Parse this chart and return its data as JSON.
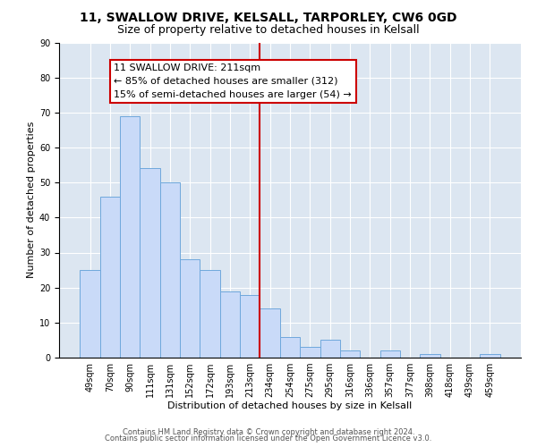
{
  "title": "11, SWALLOW DRIVE, KELSALL, TARPORLEY, CW6 0GD",
  "subtitle": "Size of property relative to detached houses in Kelsall",
  "xlabel": "Distribution of detached houses by size in Kelsall",
  "ylabel": "Number of detached properties",
  "bar_labels": [
    "49sqm",
    "70sqm",
    "90sqm",
    "111sqm",
    "131sqm",
    "152sqm",
    "172sqm",
    "193sqm",
    "213sqm",
    "234sqm",
    "254sqm",
    "275sqm",
    "295sqm",
    "316sqm",
    "336sqm",
    "357sqm",
    "377sqm",
    "398sqm",
    "418sqm",
    "439sqm",
    "459sqm"
  ],
  "bar_heights": [
    25,
    46,
    69,
    54,
    50,
    28,
    25,
    19,
    18,
    14,
    6,
    3,
    5,
    2,
    0,
    2,
    0,
    1,
    0,
    0,
    1
  ],
  "bar_color": "#c9daf8",
  "bar_edge_color": "#6fa8dc",
  "vline_color": "#cc0000",
  "annotation_text": "11 SWALLOW DRIVE: 211sqm\n← 85% of detached houses are smaller (312)\n15% of semi-detached houses are larger (54) →",
  "annotation_box_color": "#ffffff",
  "annotation_box_edge": "#cc0000",
  "ylim": [
    0,
    90
  ],
  "yticks": [
    0,
    10,
    20,
    30,
    40,
    50,
    60,
    70,
    80,
    90
  ],
  "background_color": "#dce6f1",
  "grid_color": "#ffffff",
  "footer1": "Contains HM Land Registry data © Crown copyright and database right 2024.",
  "footer2": "Contains public sector information licensed under the Open Government Licence v3.0.",
  "title_fontsize": 10,
  "subtitle_fontsize": 9,
  "axis_label_fontsize": 8,
  "tick_fontsize": 7,
  "annotation_fontsize": 8,
  "footer_fontsize": 6
}
